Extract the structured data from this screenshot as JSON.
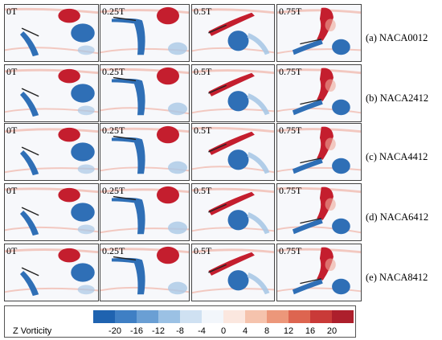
{
  "phases": [
    "0T",
    "0.25T",
    "0.5T",
    "0.75T"
  ],
  "rows": [
    {
      "label": "(a) NACA0012"
    },
    {
      "label": "(b) NACA2412"
    },
    {
      "label": "(c) NACA4412"
    },
    {
      "label": "(d) NACA6412"
    },
    {
      "label": "(e) NACA8412"
    }
  ],
  "colorbar": {
    "title": "Z Vorticity",
    "ticks": [
      "-20",
      "-16",
      "-12",
      "-8",
      "-4",
      "0",
      "4",
      "8",
      "12",
      "16",
      "20"
    ],
    "colors": [
      "#1f63b0",
      "#3f7fc4",
      "#6a9fd4",
      "#9bc1e4",
      "#cfe1f2",
      "#f2f6fb",
      "#fbe7df",
      "#f5c3ad",
      "#ec977a",
      "#dd6550",
      "#c93a38",
      "#ad1f2c"
    ]
  }
}
